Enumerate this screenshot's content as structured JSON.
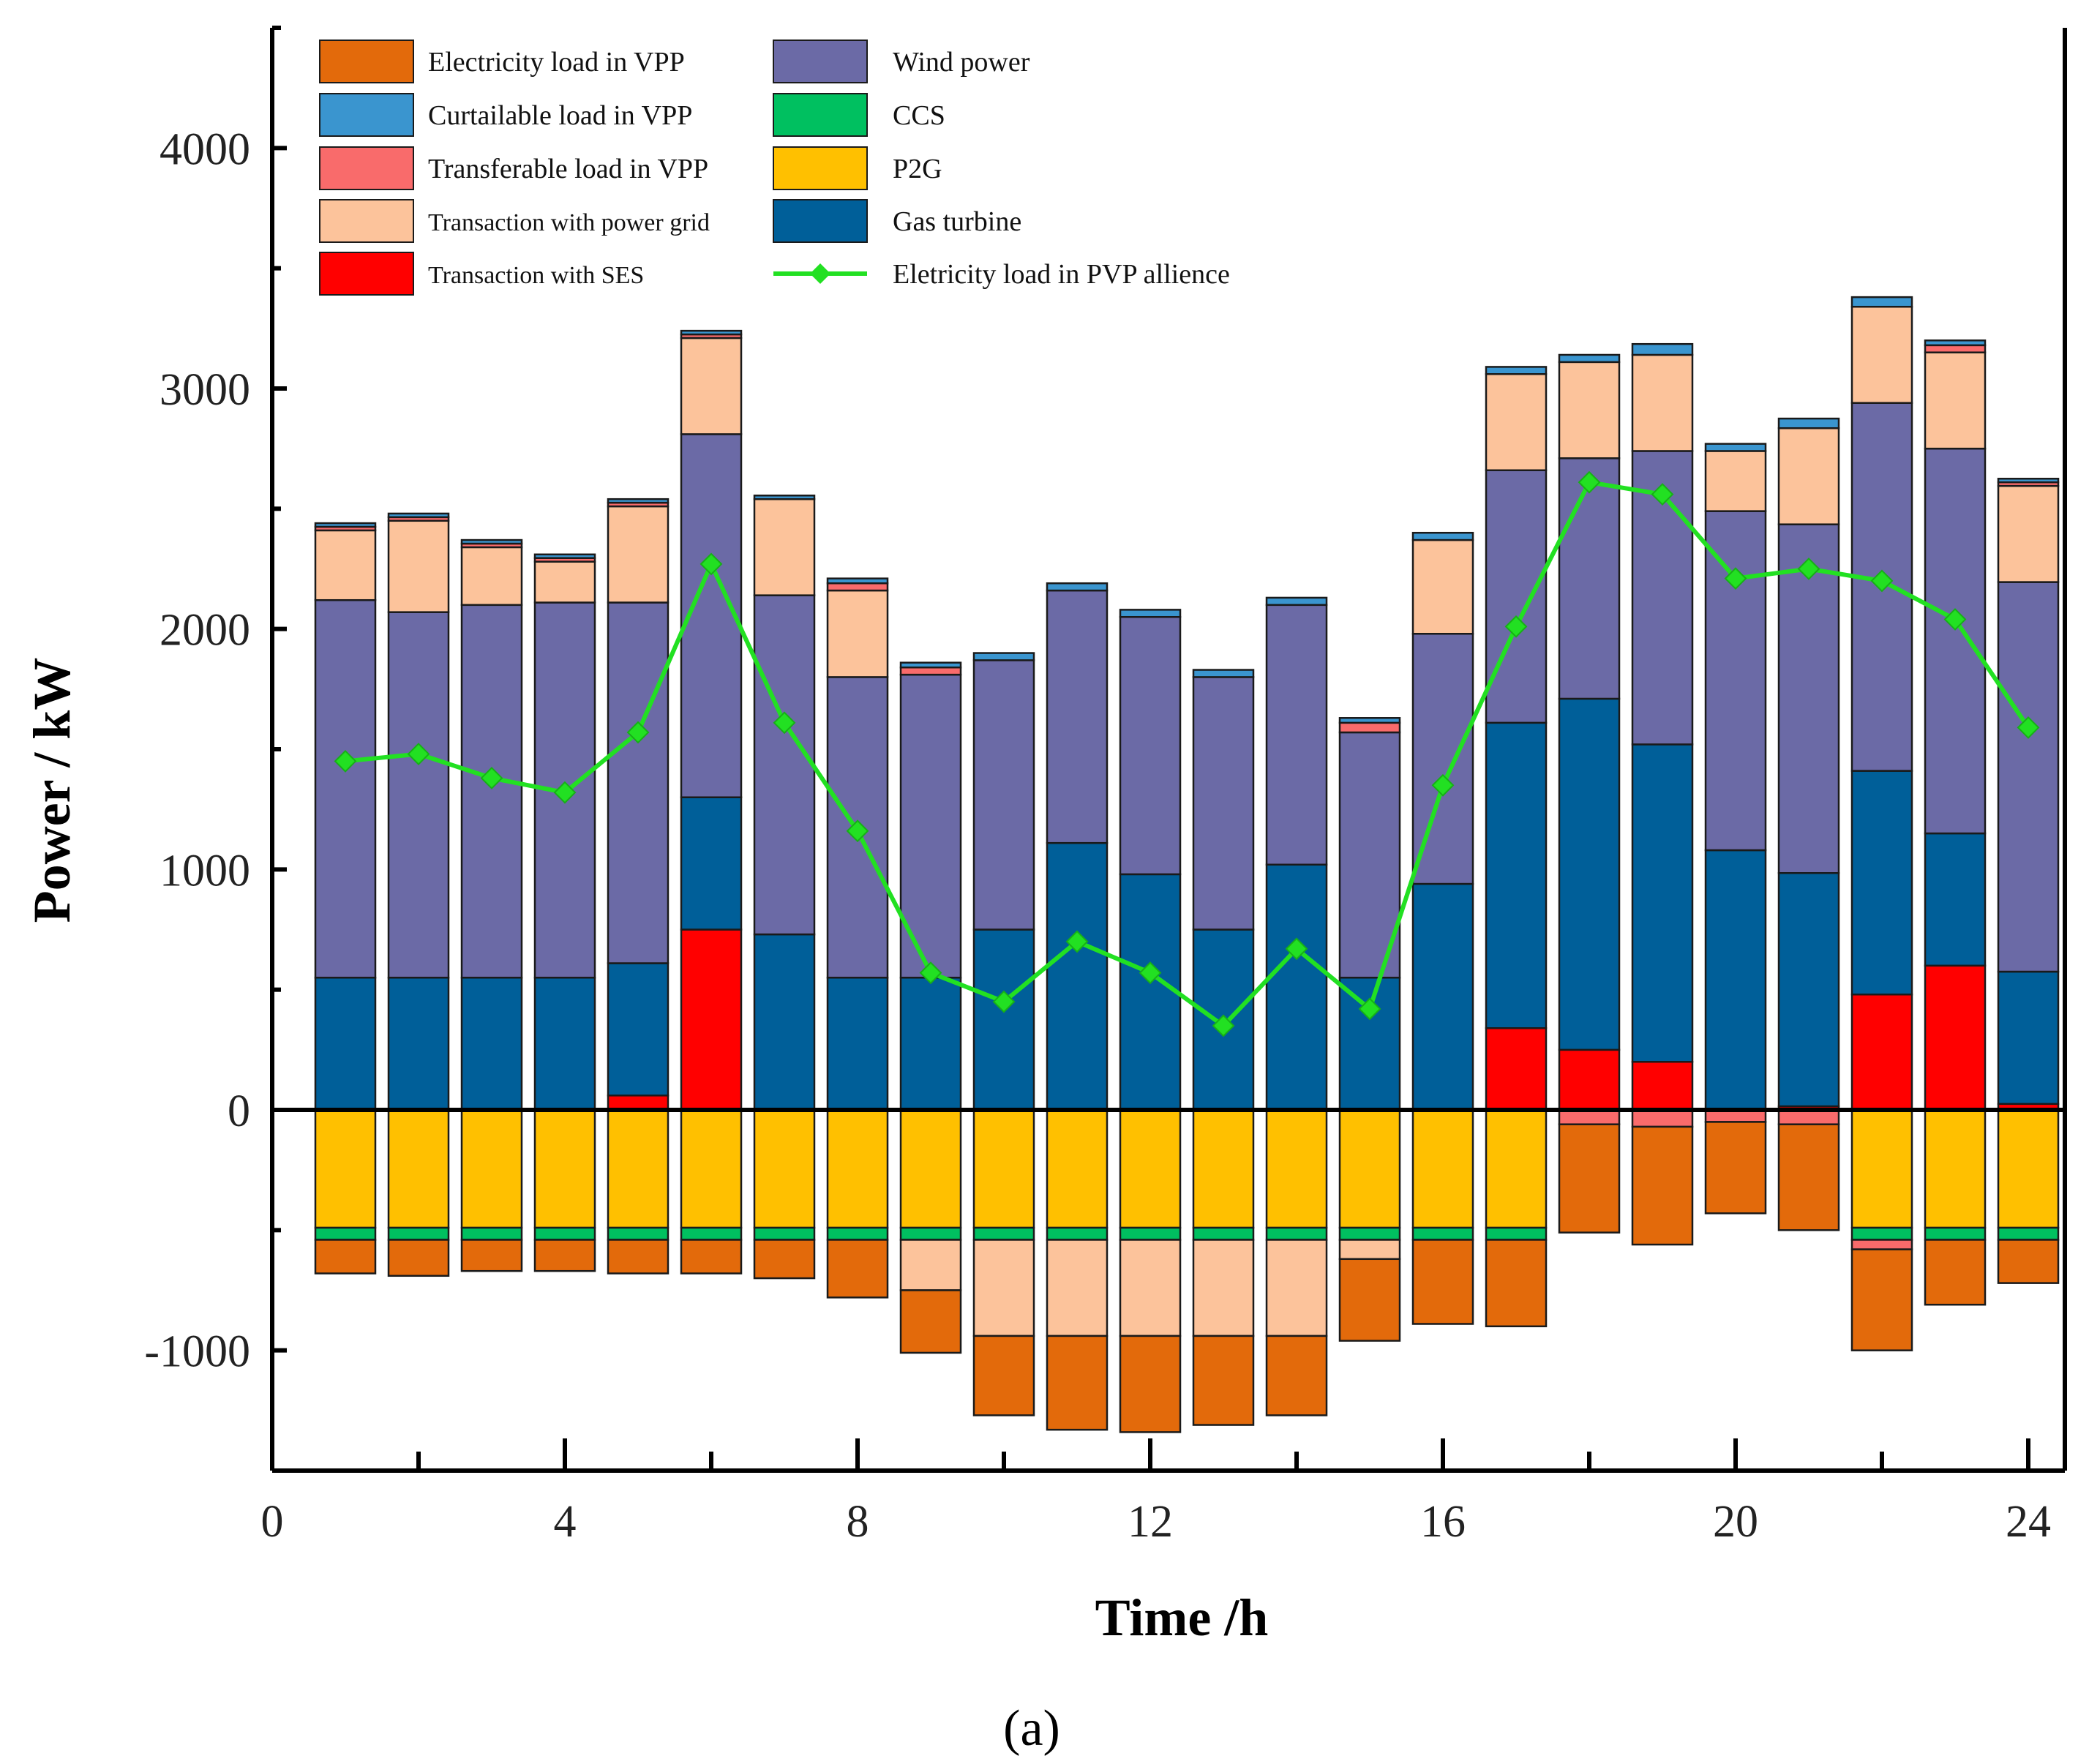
{
  "chart_data": {
    "type": "bar",
    "stacked": true,
    "caption": "(a)",
    "xlabel": "Time /h",
    "ylabel": "Power / kW",
    "xlim": [
      0,
      24.5
    ],
    "ylim": [
      -1500,
      4500
    ],
    "x_ticks": [
      0,
      4,
      8,
      12,
      16,
      20,
      24
    ],
    "y_ticks": [
      -1000,
      0,
      1000,
      2000,
      3000,
      4000
    ],
    "x_tick_labels": [
      "0",
      "4",
      "8",
      "12",
      "16",
      "20",
      "24"
    ],
    "y_tick_labels": [
      "-1000",
      "0",
      "1000",
      "2000",
      "3000",
      "4000"
    ],
    "hours": [
      1,
      2,
      3,
      4,
      5,
      6,
      7,
      8,
      9,
      10,
      11,
      12,
      13,
      14,
      15,
      16,
      17,
      18,
      19,
      20,
      21,
      22,
      23,
      24
    ],
    "positive_series": [
      {
        "name": "Transaction with SES",
        "color": "#ff0000",
        "values": [
          0,
          0,
          0,
          0,
          60,
          750,
          0,
          0,
          0,
          0,
          0,
          0,
          0,
          0,
          0,
          0,
          340,
          250,
          200,
          0,
          15,
          480,
          600,
          25
        ]
      },
      {
        "name": "Gas turbine",
        "color": "#005f99",
        "values": [
          550,
          550,
          550,
          550,
          550,
          550,
          730,
          550,
          550,
          750,
          1110,
          980,
          750,
          1020,
          550,
          940,
          1270,
          1460,
          1320,
          1080,
          970,
          930,
          550,
          550
        ]
      },
      {
        "name": "Wind power",
        "color": "#6b6aa6",
        "values": [
          1570,
          1520,
          1550,
          1560,
          1500,
          1510,
          1410,
          1250,
          1260,
          1120,
          1050,
          1070,
          1050,
          1080,
          1020,
          1040,
          1050,
          1000,
          1220,
          1410,
          1450,
          1530,
          1600,
          1620
        ]
      },
      {
        "name": "Transaction with power grid",
        "color": "#fcc39b",
        "values": [
          290,
          380,
          240,
          170,
          400,
          400,
          400,
          360,
          0,
          0,
          0,
          0,
          0,
          0,
          0,
          390,
          400,
          400,
          400,
          250,
          400,
          400,
          400,
          400
        ]
      },
      {
        "name": "Transferable load in VPP",
        "color": "#f96b6b",
        "values": [
          15,
          15,
          15,
          15,
          15,
          15,
          0,
          30,
          30,
          0,
          0,
          0,
          0,
          0,
          40,
          0,
          0,
          0,
          0,
          0,
          0,
          0,
          30,
          15
        ]
      },
      {
        "name": "Curtailable load in VPP",
        "color": "#3a95cf",
        "values": [
          15,
          15,
          15,
          15,
          15,
          15,
          15,
          20,
          20,
          30,
          30,
          30,
          30,
          30,
          20,
          30,
          30,
          30,
          45,
          30,
          40,
          40,
          20,
          15
        ]
      }
    ],
    "negative_series": [
      {
        "name": "P2G",
        "color": "#ffc000",
        "values": [
          -490,
          -490,
          -490,
          -490,
          -490,
          -490,
          -490,
          -490,
          -490,
          -490,
          -490,
          -490,
          -490,
          -490,
          -490,
          -490,
          -490,
          0,
          0,
          0,
          0,
          -490,
          -490,
          -490
        ]
      },
      {
        "name": "CCS",
        "color": "#00c060",
        "values": [
          -50,
          -50,
          -50,
          -50,
          -50,
          -50,
          -50,
          -50,
          -50,
          -50,
          -50,
          -50,
          -50,
          -50,
          -50,
          -50,
          -50,
          0,
          0,
          0,
          0,
          -50,
          -50,
          -50
        ]
      },
      {
        "name": "Transferable load in VPP",
        "color": "#f96b6b",
        "values": [
          0,
          0,
          0,
          0,
          0,
          0,
          0,
          0,
          0,
          0,
          0,
          0,
          0,
          0,
          0,
          0,
          0,
          -60,
          -70,
          -50,
          -60,
          -40,
          0,
          0
        ]
      },
      {
        "name": "Transaction with power grid",
        "color": "#fcc39b",
        "values": [
          0,
          0,
          0,
          0,
          0,
          0,
          0,
          0,
          -210,
          -400,
          -400,
          -400,
          -400,
          -400,
          -80,
          0,
          0,
          0,
          0,
          0,
          0,
          0,
          0,
          0
        ]
      },
      {
        "name": "Electricity load in VPP",
        "color": "#e36a0b",
        "values": [
          -140,
          -150,
          -130,
          -130,
          -140,
          -140,
          -160,
          -240,
          -260,
          -330,
          -390,
          -400,
          -370,
          -330,
          -340,
          -350,
          -360,
          -450,
          -490,
          -380,
          -440,
          -420,
          -270,
          -180
        ]
      }
    ],
    "line_series": {
      "name": "Eletricity load in PVP allience",
      "color": "#22e022",
      "values": [
        1450,
        1480,
        1380,
        1320,
        1570,
        2270,
        1610,
        1160,
        570,
        450,
        700,
        570,
        350,
        670,
        420,
        1350,
        2010,
        2610,
        2560,
        2210,
        2250,
        2200,
        2040,
        1590
      ]
    },
    "legend": {
      "position": "top-left",
      "left_column": [
        {
          "label": "Electricity load in VPP",
          "color": "#e36a0b"
        },
        {
          "label": "Curtailable load in VPP",
          "color": "#3a95cf"
        },
        {
          "label": "Transferable load in VPP",
          "color": "#f96b6b"
        },
        {
          "label": "Transaction with power grid",
          "color": "#fcc39b"
        },
        {
          "label": "Transaction with SES",
          "color": "#ff0000"
        }
      ],
      "right_column": [
        {
          "label": "Wind power",
          "color": "#6b6aa6"
        },
        {
          "label": "CCS",
          "color": "#00c060"
        },
        {
          "label": "P2G",
          "color": "#ffc000"
        },
        {
          "label": "Gas turbine",
          "color": "#005f99"
        },
        {
          "label": "Eletricity load in PVP allience",
          "color": "#22e022",
          "kind": "line"
        }
      ]
    }
  }
}
